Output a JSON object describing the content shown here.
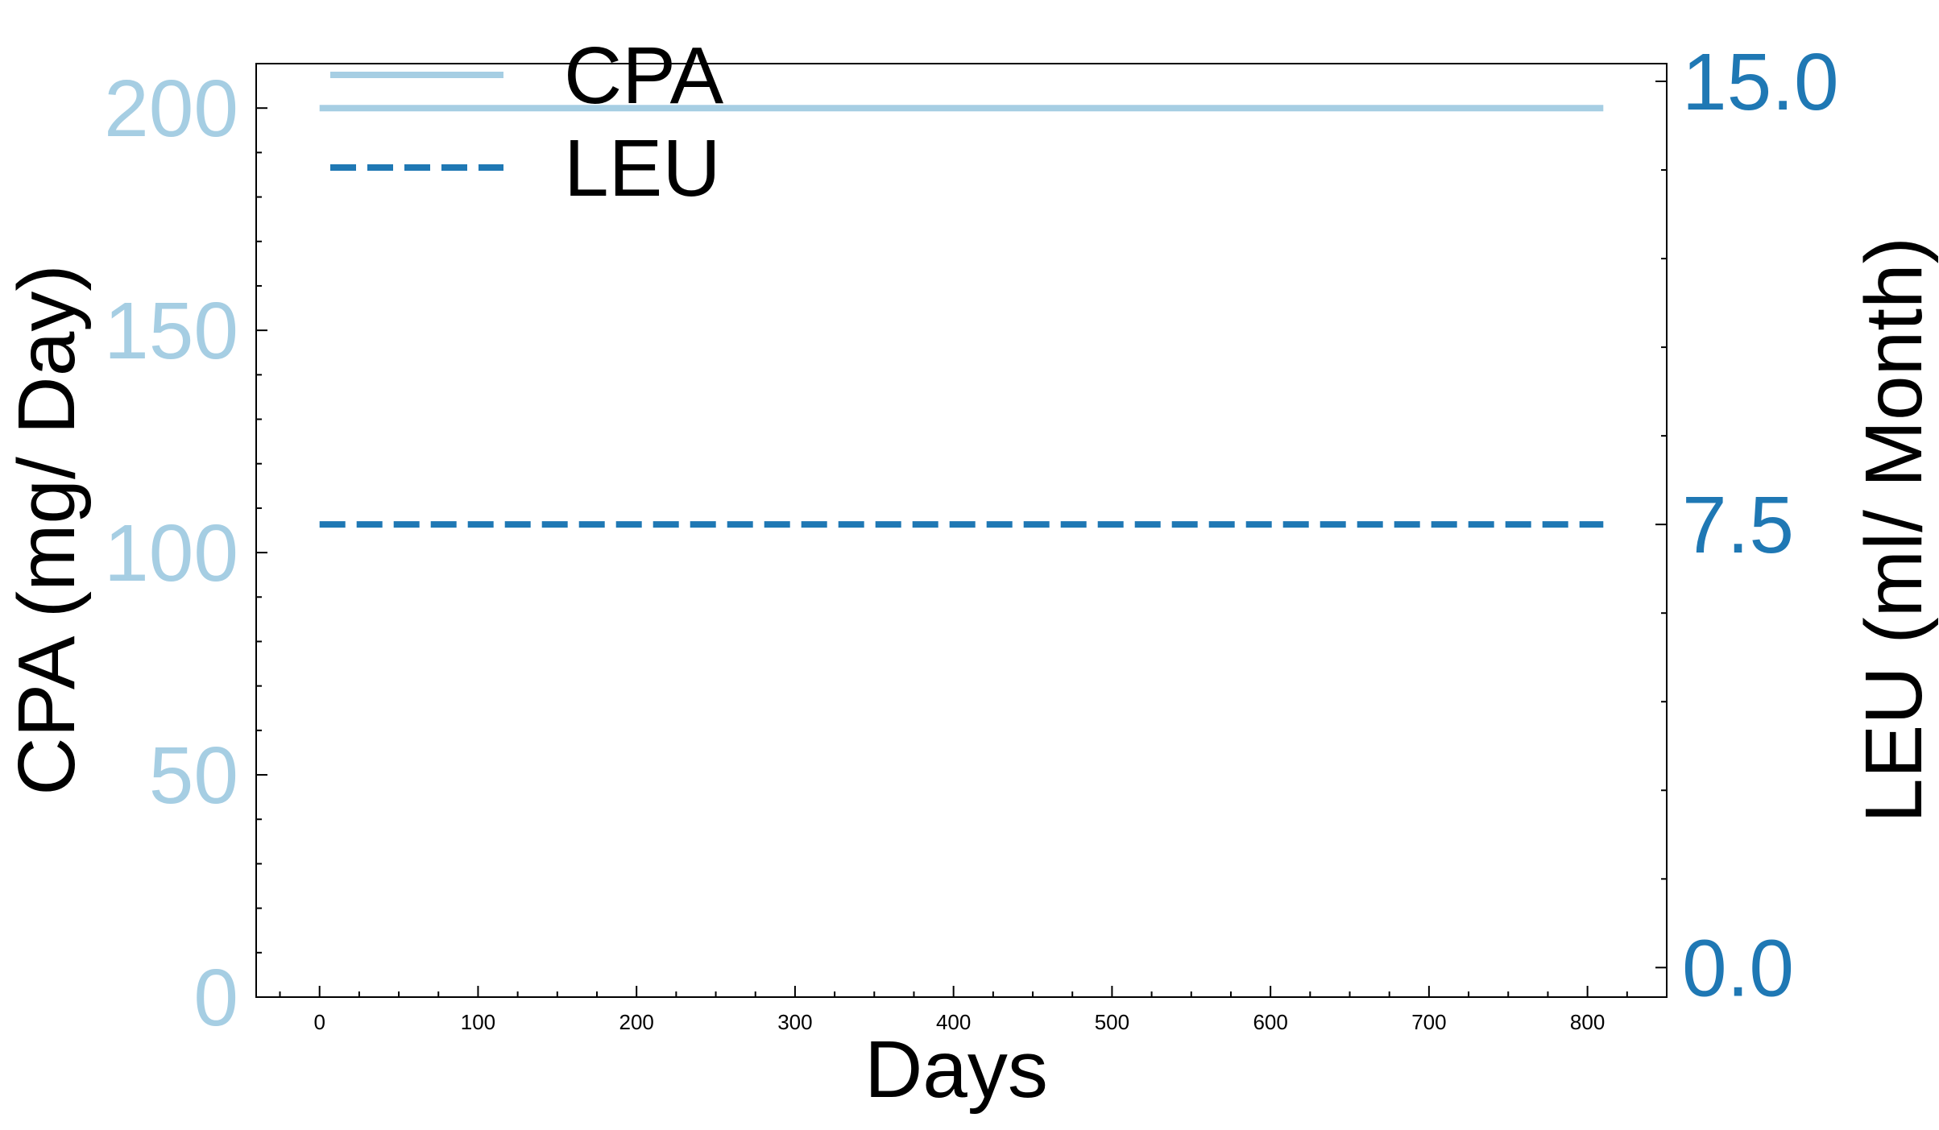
{
  "chart_data": {
    "type": "line",
    "x_label": "Days",
    "x_range": [
      -40,
      850
    ],
    "x_ticks": [
      "0",
      "100",
      "200",
      "300",
      "400",
      "500",
      "600",
      "700",
      "800"
    ],
    "y_left": {
      "label": "CPA (mg/ Day)",
      "range": [
        0,
        210
      ],
      "ticks": [
        "0",
        "50",
        "100",
        "150",
        "200"
      ],
      "color": "#a6cee3"
    },
    "y_right": {
      "label": "LEU (ml/ Month)",
      "range": [
        -0.5,
        15.3
      ],
      "ticks": [
        "0.0",
        "7.5",
        "15.0"
      ],
      "color": "#1f78b4"
    },
    "series": [
      {
        "name": "CPA",
        "axis": "left",
        "style": "solid",
        "color": "#a6cee3",
        "x": [
          0,
          810
        ],
        "y": [
          200,
          200
        ]
      },
      {
        "name": "LEU",
        "axis": "right",
        "style": "dashed",
        "color": "#1f78b4",
        "x": [
          0,
          810
        ],
        "y": [
          7.5,
          7.5
        ]
      }
    ],
    "legend": {
      "position": "top-left",
      "entries": [
        "CPA",
        "LEU"
      ]
    },
    "grid": false
  }
}
